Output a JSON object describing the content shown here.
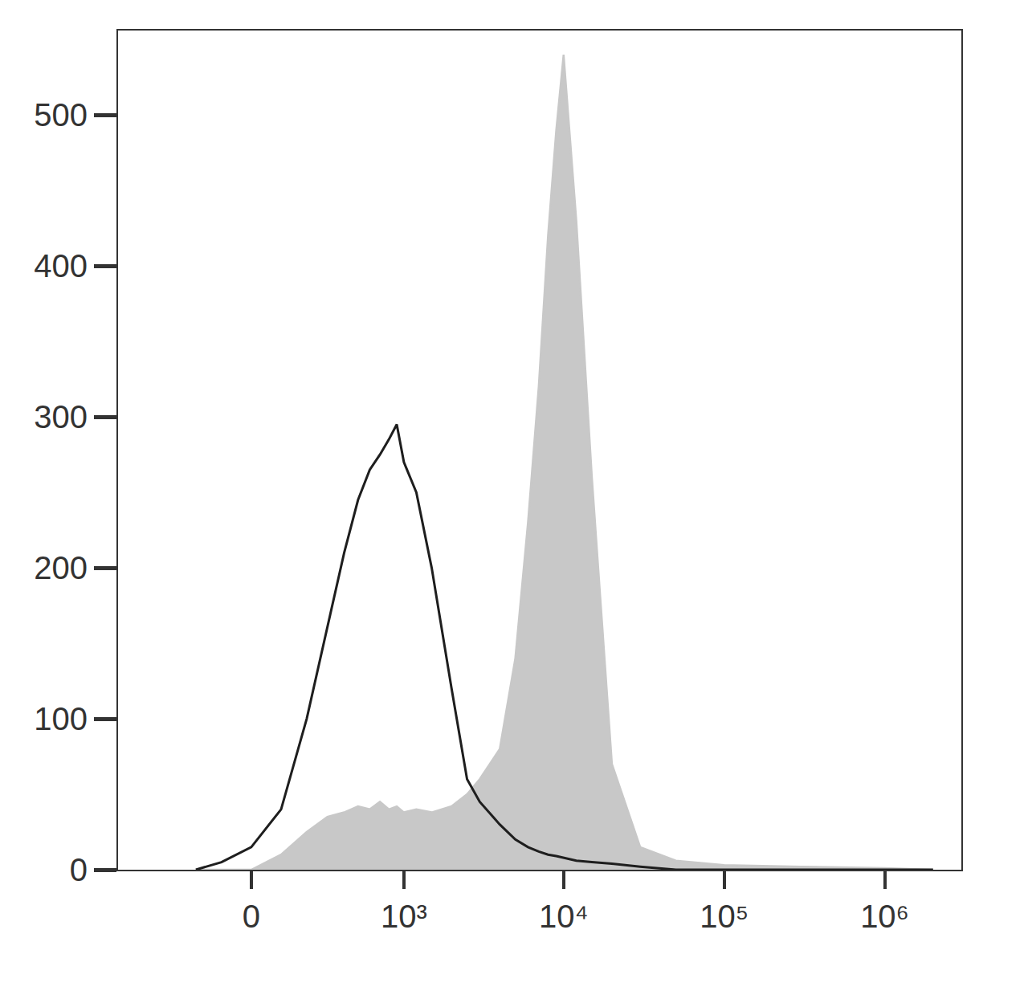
{
  "chart_data": {
    "type": "line",
    "x": [
      -200,
      -100,
      0,
      100,
      200,
      300,
      400,
      500,
      600,
      700,
      800,
      900,
      1000,
      1200,
      1500,
      2000,
      2500,
      3000,
      4000,
      5000,
      6000,
      7000,
      8000,
      9000,
      10000,
      12000,
      15000,
      20000,
      30000,
      50000,
      100000,
      300000,
      1000000,
      2000000
    ],
    "series": [
      {
        "type": "area",
        "color": "#c8c8c8",
        "values": [
          0,
          0,
          0,
          10,
          25,
          35,
          38,
          42,
          40,
          45,
          40,
          42,
          38,
          40,
          38,
          42,
          50,
          60,
          80,
          140,
          230,
          320,
          420,
          490,
          540,
          430,
          260,
          70,
          15,
          6,
          3,
          2,
          1,
          0
        ]
      },
      {
        "type": "line",
        "color": "#1e1e1e",
        "values": [
          0,
          5,
          15,
          40,
          100,
          160,
          210,
          245,
          265,
          275,
          285,
          295,
          270,
          250,
          200,
          120,
          60,
          45,
          30,
          20,
          15,
          12,
          10,
          9,
          8,
          6,
          5,
          4,
          2,
          0,
          0,
          0,
          0,
          0
        ]
      }
    ],
    "log": "x",
    "xlim": [
      -750,
      3000000
    ],
    "xticks": [
      0,
      {
        "value": 1000,
        "label": "10³"
      },
      {
        "value": 10000,
        "label": "10⁴"
      },
      {
        "value": 100000,
        "label": "10⁵"
      },
      {
        "value": 1000000,
        "label": "10⁶"
      }
    ],
    "ylim": [
      0,
      556
    ],
    "yticks": [
      0,
      100,
      200,
      300,
      400,
      500
    ],
    "grid": false
  }
}
